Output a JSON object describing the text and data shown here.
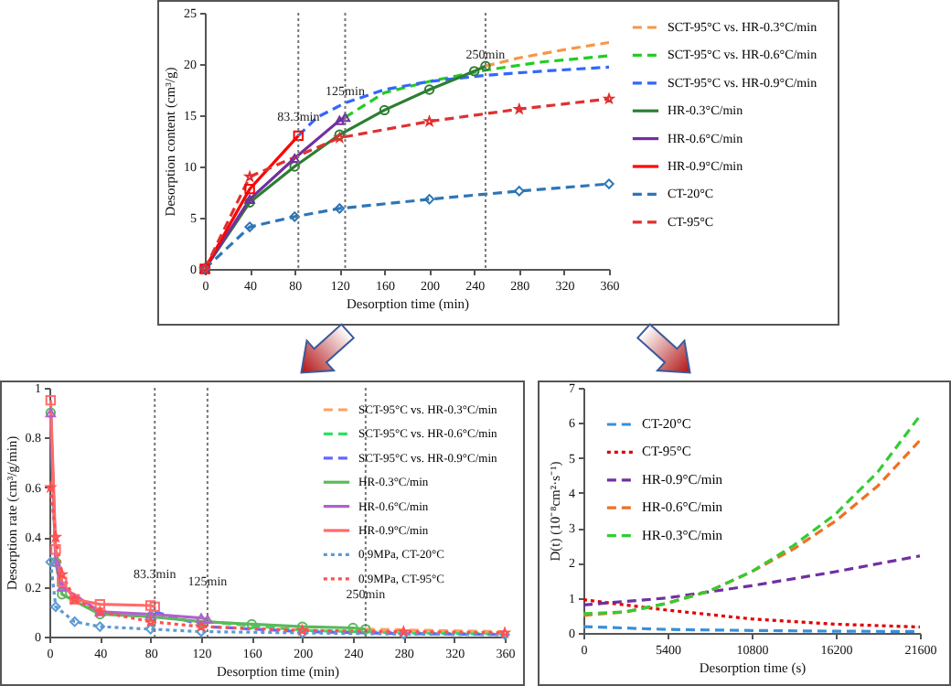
{
  "chart_data": [
    {
      "type": "line",
      "xlabel": "Desorption time (min)",
      "ylabel": "Desorption content (cm³/g)",
      "xlim": [
        0,
        360
      ],
      "xticks": [
        0,
        40,
        80,
        120,
        160,
        200,
        240,
        280,
        320,
        360
      ],
      "ylim": [
        0,
        25
      ],
      "yticks": [
        0,
        5,
        10,
        15,
        20,
        25
      ],
      "legend": "right",
      "ref_lines": [
        {
          "axis": "x",
          "value": 83.3,
          "label": "83.3min"
        },
        {
          "axis": "x",
          "value": 125,
          "label": "125min"
        },
        {
          "axis": "x",
          "value": 250,
          "label": "250min"
        }
      ],
      "series": [
        {
          "name": "SCT-95°C vs. HR-0.3°C/min",
          "color": "#f79646",
          "line_style": "dashed",
          "marker": "none",
          "x": [
            250,
            280,
            320,
            360
          ],
          "values": [
            19.8,
            20.6,
            21.4,
            22.1
          ]
        },
        {
          "name": "SCT-95°C vs. HR-0.6°C/min",
          "color": "#22cc22",
          "line_style": "dashed",
          "marker": "none",
          "x": [
            125,
            160,
            200,
            250,
            300,
            360
          ],
          "values": [
            14.8,
            17.2,
            18.3,
            19.4,
            20.2,
            20.8
          ]
        },
        {
          "name": "SCT-95°C vs. HR-0.9°C/min",
          "color": "#3366ff",
          "line_style": "dashed",
          "marker": "none",
          "x": [
            83.3,
            100,
            125,
            160,
            200,
            250,
            300,
            360
          ],
          "values": [
            13,
            14.8,
            16.2,
            17.5,
            18.3,
            18.9,
            19.3,
            19.7
          ]
        },
        {
          "name": "HR-0.3°C/min",
          "color": "#2e7d32",
          "line_style": "solid",
          "marker": "circle",
          "x": [
            0,
            40,
            80,
            120,
            160,
            200,
            240,
            250
          ],
          "values": [
            0,
            6.5,
            10,
            13.1,
            15.5,
            17.5,
            19.3,
            19.8
          ]
        },
        {
          "name": "HR-0.6°C/min",
          "color": "#7030a0",
          "line_style": "solid",
          "marker": "triangle",
          "x": [
            0,
            40,
            80,
            120,
            125
          ],
          "values": [
            0,
            6.8,
            10.8,
            14.5,
            14.8
          ]
        },
        {
          "name": "HR-0.9°C/min",
          "color": "#ff0000",
          "line_style": "solid",
          "marker": "square",
          "x": [
            0,
            40,
            83.3
          ],
          "values": [
            0,
            7.8,
            13
          ]
        },
        {
          "name": "CT-20°C",
          "color": "#2e75b6",
          "line_style": "dashed",
          "marker": "diamond",
          "x": [
            0,
            40,
            80,
            120,
            200,
            280,
            360
          ],
          "values": [
            0,
            4.1,
            5.1,
            5.9,
            6.8,
            7.6,
            8.3
          ]
        },
        {
          "name": "CT-95°C",
          "color": "#e03030",
          "line_style": "dashed",
          "marker": "star",
          "x": [
            0,
            40,
            120,
            200,
            280,
            360
          ],
          "values": [
            0,
            9,
            12.8,
            14.4,
            15.6,
            16.6
          ]
        }
      ]
    },
    {
      "type": "line",
      "xlabel": "Desorption time (min)",
      "ylabel": "Desorption rate (cm³/g/min)",
      "xlim": [
        0,
        360
      ],
      "xticks": [
        0,
        40,
        80,
        120,
        160,
        200,
        240,
        280,
        320,
        360
      ],
      "ylim": [
        0,
        1
      ],
      "yticks": [
        0,
        0.2,
        0.4,
        0.6,
        0.8,
        1
      ],
      "legend": "top right",
      "ref_lines": [
        {
          "axis": "x",
          "value": 83.3,
          "label": "83.3min"
        },
        {
          "axis": "x",
          "value": 125,
          "label": "125min"
        },
        {
          "axis": "x",
          "value": 250,
          "label": "250min"
        }
      ],
      "series": [
        {
          "name": "SCT-95°C vs. HR-0.3°C/min",
          "color": "#ffa060",
          "line_style": "dashed",
          "marker": "none",
          "x": [
            250,
            300,
            360
          ],
          "values": [
            0.03,
            0.025,
            0.02
          ]
        },
        {
          "name": "SCT-95°C vs. HR-0.6°C/min",
          "color": "#33dd66",
          "line_style": "dashed",
          "marker": "none",
          "x": [
            125,
            200,
            280,
            360
          ],
          "values": [
            0.06,
            0.025,
            0.015,
            0.01
          ]
        },
        {
          "name": "SCT-95°C vs. HR-0.9°C/min",
          "color": "#6666ff",
          "line_style": "dashed",
          "marker": "none",
          "x": [
            83.3,
            125,
            200,
            280,
            360
          ],
          "values": [
            0.1,
            0.04,
            0.02,
            0.012,
            0.008
          ]
        },
        {
          "name": "HR-0.3°C/min",
          "color": "#5cb85c",
          "line_style": "solid",
          "marker": "circle",
          "x": [
            1,
            5,
            10,
            40,
            80,
            120,
            160,
            200,
            240,
            250
          ],
          "values": [
            0.9,
            0.3,
            0.17,
            0.09,
            0.08,
            0.06,
            0.05,
            0.04,
            0.035,
            0.03
          ]
        },
        {
          "name": "HR-0.6°C/min",
          "color": "#b060d0",
          "line_style": "solid",
          "marker": "triangle",
          "x": [
            1,
            5,
            10,
            40,
            80,
            120,
            125
          ],
          "values": [
            0.9,
            0.3,
            0.2,
            0.1,
            0.09,
            0.075,
            0.07
          ]
        },
        {
          "name": "HR-0.9°C/min",
          "color": "#ff6b6b",
          "line_style": "solid",
          "marker": "square",
          "x": [
            1,
            5,
            10,
            20,
            40,
            80,
            83.3
          ],
          "values": [
            0.95,
            0.35,
            0.22,
            0.15,
            0.13,
            0.125,
            0.12
          ]
        },
        {
          "name": "0.9MPa, CT-20°C",
          "color": "#5b9bd5",
          "line_style": "dotted",
          "marker": "diamond",
          "x": [
            1,
            5,
            20,
            40,
            80,
            120,
            200,
            280,
            360
          ],
          "values": [
            0.3,
            0.12,
            0.06,
            0.04,
            0.03,
            0.02,
            0.015,
            0.01,
            0.008
          ]
        },
        {
          "name": "0.9MPa, CT-95°C",
          "color": "#ff5050",
          "line_style": "dotted",
          "marker": "star",
          "x": [
            1,
            5,
            10,
            20,
            40,
            80,
            120,
            200,
            280,
            360
          ],
          "values": [
            0.6,
            0.4,
            0.25,
            0.15,
            0.1,
            0.06,
            0.04,
            0.025,
            0.02,
            0.015
          ]
        }
      ]
    },
    {
      "type": "line",
      "xlabel": "Desorption time (s)",
      "ylabel": "D(t) (10⁻⁸cm²·s⁻¹)",
      "xlim": [
        0,
        21600
      ],
      "xticks": [
        0,
        5400,
        10800,
        16200,
        21600
      ],
      "ylim": [
        0,
        7
      ],
      "yticks": [
        0,
        1,
        2,
        3,
        4,
        5,
        6,
        7
      ],
      "legend": "top left",
      "series": [
        {
          "name": "CT-20°C",
          "color": "#3a8fd9",
          "line_style": "dashed",
          "marker": "none",
          "x": [
            0,
            5400,
            10800,
            16200,
            21600
          ],
          "values": [
            0.18,
            0.1,
            0.07,
            0.05,
            0.04
          ]
        },
        {
          "name": "CT-95°C",
          "color": "#e00000",
          "line_style": "dotted",
          "marker": "none",
          "x": [
            0,
            2700,
            5400,
            10800,
            16200,
            21600
          ],
          "values": [
            0.95,
            0.8,
            0.65,
            0.4,
            0.25,
            0.17
          ]
        },
        {
          "name": "HR-0.9°C/min",
          "color": "#7030a0",
          "line_style": "dashed",
          "marker": "none",
          "x": [
            0,
            5400,
            10800,
            16200,
            21600
          ],
          "values": [
            0.8,
            1,
            1.35,
            1.75,
            2.2
          ]
        },
        {
          "name": "HR-0.6°C/min",
          "color": "#f07020",
          "line_style": "dashed",
          "marker": "none",
          "x": [
            0,
            2700,
            5400,
            8100,
            10800,
            13500,
            16200,
            18900,
            21600
          ],
          "values": [
            0.5,
            0.6,
            0.85,
            1.2,
            1.75,
            2.4,
            3.2,
            4.2,
            5.5
          ]
        },
        {
          "name": "HR-0.3°C/min",
          "color": "#33cc33",
          "line_style": "dashed",
          "marker": "none",
          "x": [
            0,
            2700,
            5400,
            8100,
            10800,
            13500,
            16200,
            18900,
            21600
          ],
          "values": [
            0.55,
            0.6,
            0.85,
            1.2,
            1.75,
            2.5,
            3.4,
            4.6,
            6.2
          ]
        }
      ]
    }
  ]
}
